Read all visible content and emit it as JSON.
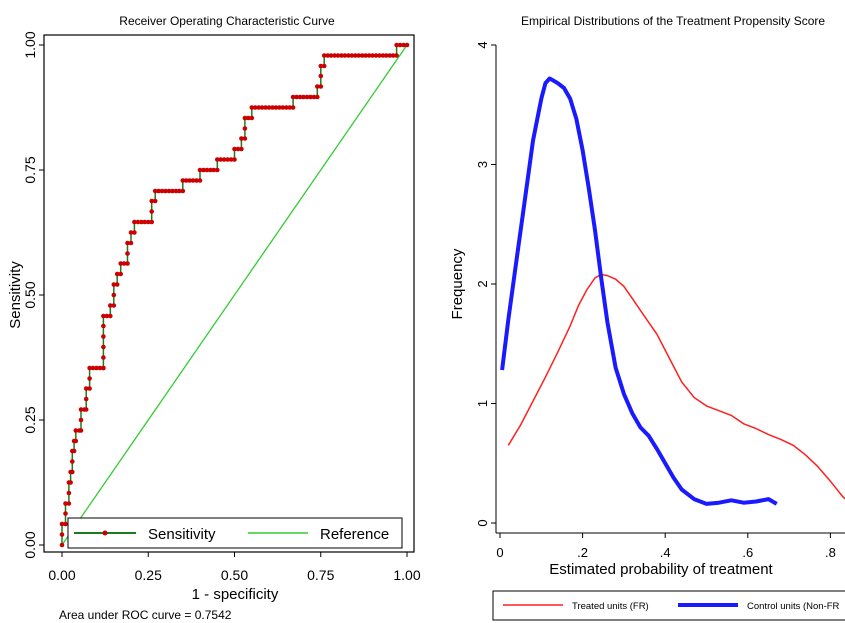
{
  "chart_data": [
    {
      "type": "line",
      "title": "Receiver Operating Characteristic Curve",
      "xlabel": "1 - specificity",
      "ylabel": "Sensitivity",
      "xlim": [
        0,
        1
      ],
      "ylim": [
        0,
        1
      ],
      "xticks": [
        "0.00",
        "0.25",
        "0.50",
        "0.75",
        "1.00"
      ],
      "yticks": [
        "0.00",
        "0.25",
        "0.50",
        "0.75",
        "1.00"
      ],
      "note": "Area under ROC curve = 0.7542",
      "legend": {
        "position": "bottom",
        "entries": [
          "Sensitivity",
          "Reference"
        ]
      },
      "colors": {
        "sensitivity": "#1f7a1f",
        "sensitivity_marker": "#cc0000",
        "reference": "#33cc33"
      },
      "series": [
        {
          "name": "Sensitivity",
          "points": [
            [
              0,
              0
            ],
            [
              0,
              0.021
            ],
            [
              0,
              0.042
            ],
            [
              0.01,
              0.042
            ],
            [
              0.01,
              0.063
            ],
            [
              0.01,
              0.083
            ],
            [
              0.02,
              0.083
            ],
            [
              0.02,
              0.104
            ],
            [
              0.02,
              0.125
            ],
            [
              0.025,
              0.125
            ],
            [
              0.025,
              0.146
            ],
            [
              0.03,
              0.146
            ],
            [
              0.03,
              0.167
            ],
            [
              0.03,
              0.188
            ],
            [
              0.035,
              0.188
            ],
            [
              0.035,
              0.208
            ],
            [
              0.04,
              0.208
            ],
            [
              0.04,
              0.229
            ],
            [
              0.055,
              0.229
            ],
            [
              0.055,
              0.25
            ],
            [
              0.055,
              0.271
            ],
            [
              0.07,
              0.271
            ],
            [
              0.07,
              0.292
            ],
            [
              0.07,
              0.313
            ],
            [
              0.08,
              0.313
            ],
            [
              0.08,
              0.333
            ],
            [
              0.08,
              0.354
            ],
            [
              0.12,
              0.354
            ],
            [
              0.12,
              0.375
            ],
            [
              0.12,
              0.396
            ],
            [
              0.12,
              0.417
            ],
            [
              0.12,
              0.438
            ],
            [
              0.12,
              0.458
            ],
            [
              0.14,
              0.458
            ],
            [
              0.14,
              0.479
            ],
            [
              0.15,
              0.479
            ],
            [
              0.15,
              0.5
            ],
            [
              0.15,
              0.521
            ],
            [
              0.16,
              0.521
            ],
            [
              0.16,
              0.542
            ],
            [
              0.17,
              0.542
            ],
            [
              0.17,
              0.563
            ],
            [
              0.19,
              0.563
            ],
            [
              0.19,
              0.583
            ],
            [
              0.19,
              0.604
            ],
            [
              0.2,
              0.604
            ],
            [
              0.2,
              0.625
            ],
            [
              0.21,
              0.625
            ],
            [
              0.21,
              0.646
            ],
            [
              0.26,
              0.646
            ],
            [
              0.26,
              0.667
            ],
            [
              0.26,
              0.688
            ],
            [
              0.27,
              0.688
            ],
            [
              0.27,
              0.708
            ],
            [
              0.35,
              0.708
            ],
            [
              0.35,
              0.729
            ],
            [
              0.4,
              0.729
            ],
            [
              0.4,
              0.75
            ],
            [
              0.45,
              0.75
            ],
            [
              0.45,
              0.771
            ],
            [
              0.5,
              0.771
            ],
            [
              0.5,
              0.792
            ],
            [
              0.52,
              0.792
            ],
            [
              0.52,
              0.813
            ],
            [
              0.53,
              0.813
            ],
            [
              0.53,
              0.833
            ],
            [
              0.53,
              0.854
            ],
            [
              0.55,
              0.854
            ],
            [
              0.55,
              0.875
            ],
            [
              0.67,
              0.875
            ],
            [
              0.67,
              0.896
            ],
            [
              0.74,
              0.896
            ],
            [
              0.74,
              0.917
            ],
            [
              0.75,
              0.917
            ],
            [
              0.75,
              0.938
            ],
            [
              0.75,
              0.958
            ],
            [
              0.76,
              0.958
            ],
            [
              0.76,
              0.979
            ],
            [
              0.97,
              0.979
            ],
            [
              0.97,
              1
            ],
            [
              1,
              1
            ]
          ]
        },
        {
          "name": "Reference",
          "points": [
            [
              0,
              0
            ],
            [
              1,
              1
            ]
          ]
        }
      ]
    },
    {
      "type": "line",
      "title": "Empirical Distributions of the Treatment Propensity Score",
      "xlabel": "Estimated probability of treatment",
      "ylabel": "Frequency",
      "xlim": [
        0,
        0.85
      ],
      "ylim": [
        0,
        4
      ],
      "xticks": [
        "0",
        ".2",
        ".4",
        ".6",
        ".8"
      ],
      "yticks": [
        "0",
        "1",
        "2",
        "3",
        "4"
      ],
      "legend": {
        "position": "bottom",
        "entries": [
          "Treated units (FR)",
          "Control units (Non-FR"
        ]
      },
      "colors": {
        "treated": "#ff2020",
        "control": "#1a1aff"
      },
      "series": [
        {
          "name": "Treated units (FR)",
          "points": [
            [
              0.02,
              0.65
            ],
            [
              0.05,
              0.82
            ],
            [
              0.08,
              1.02
            ],
            [
              0.11,
              1.22
            ],
            [
              0.14,
              1.43
            ],
            [
              0.17,
              1.65
            ],
            [
              0.19,
              1.82
            ],
            [
              0.21,
              1.95
            ],
            [
              0.23,
              2.05
            ],
            [
              0.245,
              2.08
            ],
            [
              0.26,
              2.07
            ],
            [
              0.28,
              2.04
            ],
            [
              0.3,
              1.98
            ],
            [
              0.32,
              1.88
            ],
            [
              0.35,
              1.73
            ],
            [
              0.38,
              1.58
            ],
            [
              0.41,
              1.38
            ],
            [
              0.44,
              1.18
            ],
            [
              0.47,
              1.05
            ],
            [
              0.5,
              0.98
            ],
            [
              0.53,
              0.94
            ],
            [
              0.56,
              0.9
            ],
            [
              0.59,
              0.83
            ],
            [
              0.62,
              0.79
            ],
            [
              0.65,
              0.74
            ],
            [
              0.68,
              0.7
            ],
            [
              0.71,
              0.65
            ],
            [
              0.74,
              0.57
            ],
            [
              0.77,
              0.47
            ],
            [
              0.8,
              0.35
            ],
            [
              0.83,
              0.22
            ],
            [
              0.85,
              0.16
            ]
          ]
        },
        {
          "name": "Control units (Non-FR",
          "points": [
            [
              0.005,
              1.28
            ],
            [
              0.02,
              1.7
            ],
            [
              0.04,
              2.2
            ],
            [
              0.06,
              2.7
            ],
            [
              0.08,
              3.2
            ],
            [
              0.1,
              3.55
            ],
            [
              0.11,
              3.68
            ],
            [
              0.12,
              3.72
            ],
            [
              0.13,
              3.7
            ],
            [
              0.14,
              3.68
            ],
            [
              0.155,
              3.64
            ],
            [
              0.17,
              3.55
            ],
            [
              0.185,
              3.38
            ],
            [
              0.2,
              3.12
            ],
            [
              0.215,
              2.8
            ],
            [
              0.23,
              2.45
            ],
            [
              0.245,
              2.05
            ],
            [
              0.26,
              1.68
            ],
            [
              0.28,
              1.3
            ],
            [
              0.3,
              1.08
            ],
            [
              0.32,
              0.92
            ],
            [
              0.34,
              0.8
            ],
            [
              0.36,
              0.73
            ],
            [
              0.38,
              0.62
            ],
            [
              0.4,
              0.5
            ],
            [
              0.42,
              0.38
            ],
            [
              0.44,
              0.28
            ],
            [
              0.47,
              0.2
            ],
            [
              0.5,
              0.16
            ],
            [
              0.53,
              0.17
            ],
            [
              0.56,
              0.19
            ],
            [
              0.59,
              0.17
            ],
            [
              0.62,
              0.18
            ],
            [
              0.65,
              0.2
            ],
            [
              0.67,
              0.16
            ]
          ]
        }
      ]
    }
  ]
}
